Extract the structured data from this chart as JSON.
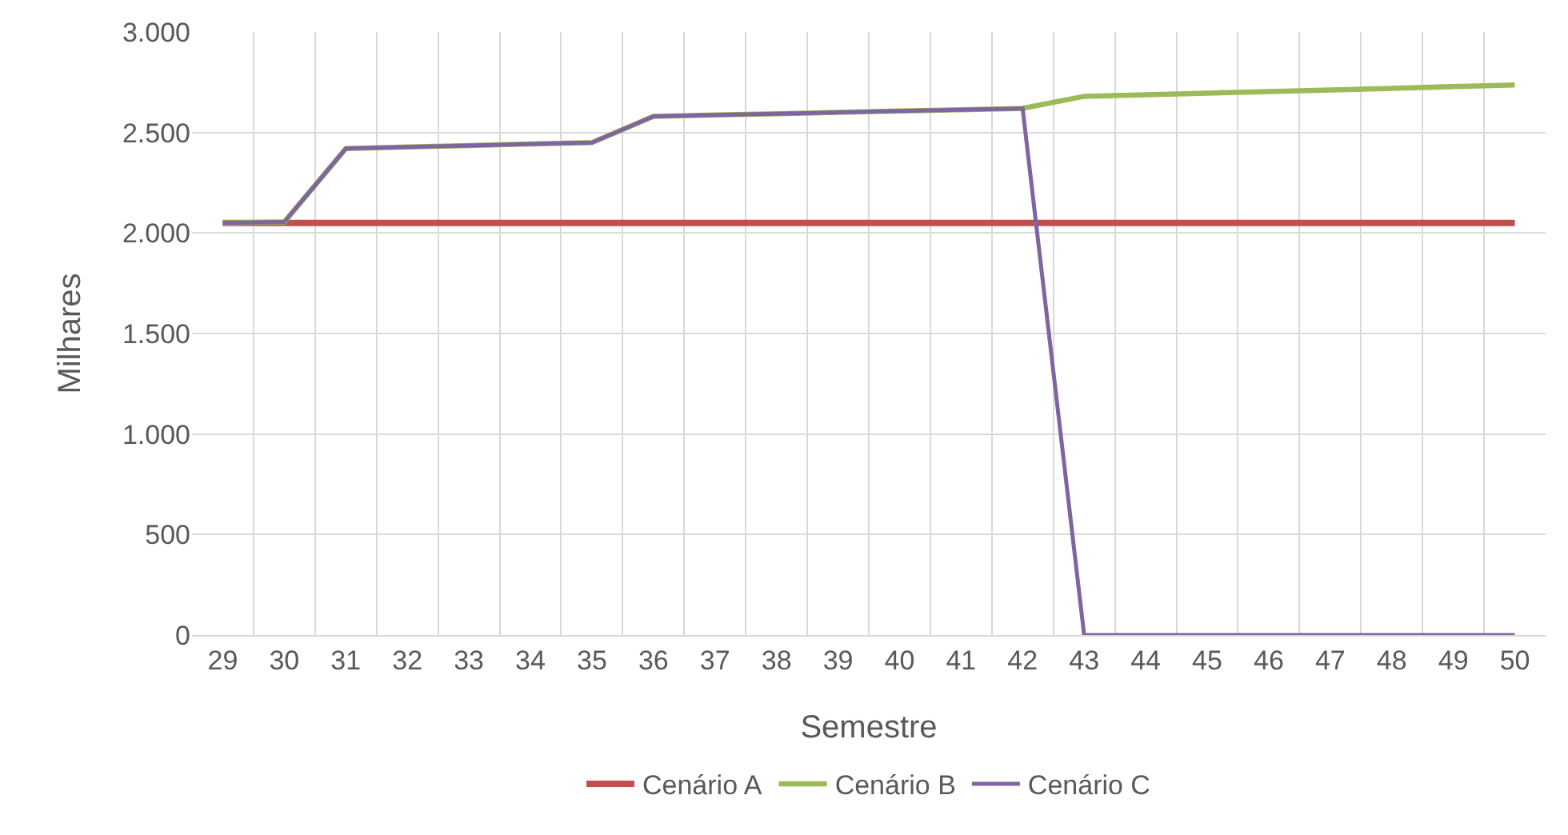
{
  "chart_data": {
    "type": "line",
    "xlabel": "Semestre",
    "ylabel": "Milhares",
    "categories": [
      "29",
      "30",
      "31",
      "32",
      "33",
      "34",
      "35",
      "36",
      "37",
      "38",
      "39",
      "40",
      "41",
      "42",
      "43",
      "44",
      "45",
      "46",
      "47",
      "48",
      "49",
      "50"
    ],
    "series": [
      {
        "name": "Cenário A",
        "color": "#c0504d",
        "values": [
          2050,
          2050,
          2050,
          2050,
          2050,
          2050,
          2050,
          2050,
          2050,
          2050,
          2050,
          2050,
          2050,
          2050,
          2050,
          2050,
          2050,
          2050,
          2050,
          2050,
          2050,
          2050
        ]
      },
      {
        "name": "Cenário B",
        "color": "#9bbb59",
        "values": [
          2050,
          2055,
          2420,
          2428,
          2435,
          2443,
          2450,
          2580,
          2587,
          2593,
          2600,
          2607,
          2613,
          2620,
          2680,
          2688,
          2696,
          2704,
          2712,
          2720,
          2728,
          2736
        ]
      },
      {
        "name": "Cenário C",
        "color": "#8064a2",
        "values": [
          2050,
          2055,
          2420,
          2428,
          2435,
          2443,
          2450,
          2580,
          2587,
          2593,
          2600,
          2607,
          2613,
          2620,
          0,
          0,
          0,
          0,
          0,
          0,
          0,
          0
        ]
      }
    ],
    "ylim": [
      0,
      3000
    ],
    "yticks": [
      0,
      500,
      {
        "value": 1000,
        "label": "1.000"
      },
      {
        "value": 1500,
        "label": "1.500"
      },
      {
        "value": 2000,
        "label": "2.000"
      },
      {
        "value": 2500,
        "label": "2.500"
      },
      {
        "value": 3000,
        "label": "3.000"
      }
    ],
    "grid": true,
    "legend": "bottom",
    "marker": "none",
    "line_style": "solid"
  }
}
